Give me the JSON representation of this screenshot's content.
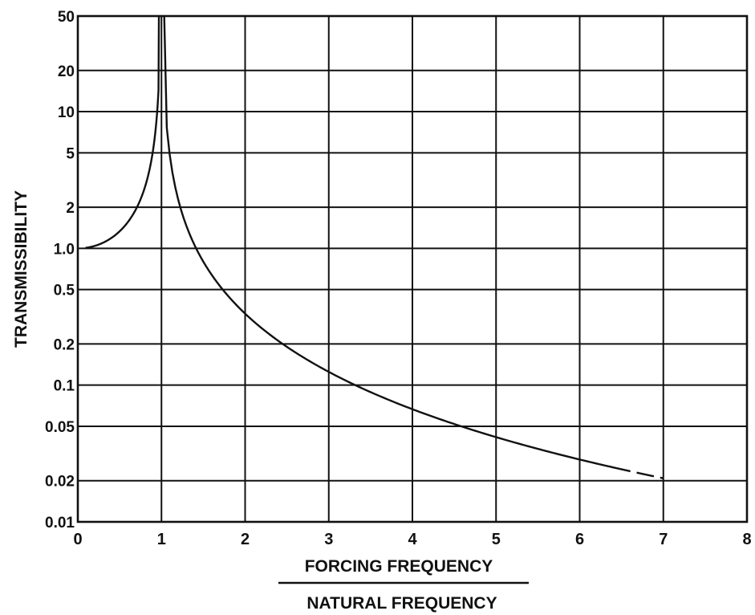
{
  "chart_data": {
    "type": "line",
    "xlabel_numerator": "FORCING FREQUENCY",
    "xlabel_denominator": "NATURAL FREQUENCY",
    "ylabel": "TRANSMISSIBILITY",
    "xlim": [
      0,
      8
    ],
    "ylim": [
      0.01,
      50
    ],
    "y_scale": "log",
    "grid": true,
    "x_ticks": [
      {
        "value": 0,
        "label": "0"
      },
      {
        "value": 1,
        "label": "1"
      },
      {
        "value": 2,
        "label": "2"
      },
      {
        "value": 3,
        "label": "3"
      },
      {
        "value": 4,
        "label": "4"
      },
      {
        "value": 5,
        "label": "5"
      },
      {
        "value": 6,
        "label": "6"
      },
      {
        "value": 7,
        "label": "7"
      },
      {
        "value": 8,
        "label": "8"
      }
    ],
    "y_ticks": [
      {
        "value": 0.01,
        "label": "0.01"
      },
      {
        "value": 0.02,
        "label": "0.02"
      },
      {
        "value": 0.05,
        "label": "0.05"
      },
      {
        "value": 0.1,
        "label": "0.1"
      },
      {
        "value": 0.2,
        "label": "0.2"
      },
      {
        "value": 0.5,
        "label": "0.5"
      },
      {
        "value": 1.0,
        "label": "1.0"
      },
      {
        "value": 2,
        "label": "2"
      },
      {
        "value": 5,
        "label": "5"
      },
      {
        "value": 10,
        "label": "10"
      },
      {
        "value": 20,
        "label": "20"
      },
      {
        "value": 50,
        "label": "50"
      }
    ],
    "series": [
      {
        "style": "solid",
        "x": [
          0.1,
          0.3,
          0.5,
          0.7,
          0.8,
          0.9,
          0.95,
          0.97
        ],
        "y": [
          1.01,
          1.1,
          1.33,
          1.96,
          2.78,
          5.26,
          10.3,
          16.9
        ]
      },
      {
        "style": "solid",
        "x": [
          1.03,
          1.05,
          1.1,
          1.2,
          1.3,
          1.5,
          1.75,
          2.0,
          2.5,
          3.0,
          3.5,
          4.0,
          4.5,
          5.0,
          5.5,
          6.0,
          6.4
        ],
        "y": [
          16.4,
          9.76,
          4.76,
          2.27,
          1.45,
          0.8,
          0.485,
          0.333,
          0.19,
          0.125,
          0.0889,
          0.0667,
          0.052,
          0.0417,
          0.0342,
          0.0286,
          0.0251
        ]
      },
      {
        "style": "dashed",
        "x": [
          6.4,
          6.6,
          6.8,
          7.0
        ],
        "y": [
          0.0251,
          0.0235,
          0.0221,
          0.0208
        ]
      }
    ]
  }
}
